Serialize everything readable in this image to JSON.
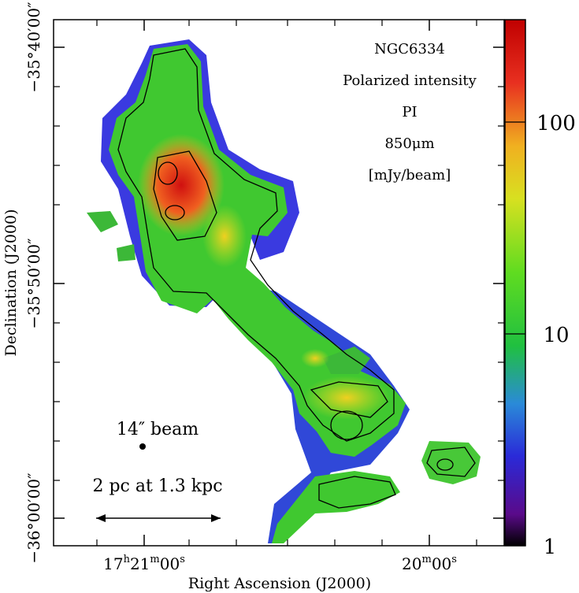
{
  "chart_data": {
    "type": "heatmap",
    "title_lines": [
      "NGC6334",
      "Polarized intensity",
      "PI",
      "850μm",
      "[mJy/beam]"
    ],
    "xlabel": "Right Ascension (J2000)",
    "ylabel": "Declination (J2000)",
    "x_ticks": [
      {
        "label_main": "17",
        "h": "h",
        "mid": "21",
        "m": "m",
        "end": "00",
        "s": "s",
        "value": "17h21m00s"
      },
      {
        "label_main": "",
        "h": "",
        "mid": "20",
        "m": "m",
        "end": "00",
        "s": "s",
        "value": "17h20m00s"
      }
    ],
    "y_ticks": [
      {
        "label": "−35°40′00″",
        "value": -35.6667
      },
      {
        "label": "−35°50′00″",
        "value": -35.8333
      },
      {
        "label": "−36°00′00″",
        "value": -36.0
      }
    ],
    "colorbar": {
      "scale": "log",
      "range": [
        1,
        300
      ],
      "ticks": [
        {
          "label": "1",
          "value": 1
        },
        {
          "label": "10",
          "value": 10
        },
        {
          "label": "100",
          "value": 100
        }
      ],
      "colors": [
        "#000000",
        "#5a0a8a",
        "#2a2ad8",
        "#2a8ad8",
        "#20c040",
        "#60dc20",
        "#d8e020",
        "#f0b020",
        "#e83020",
        "#c00000"
      ]
    },
    "beam_label": "14″ beam",
    "scale_label": "2 pc at 1.3 kpc"
  }
}
